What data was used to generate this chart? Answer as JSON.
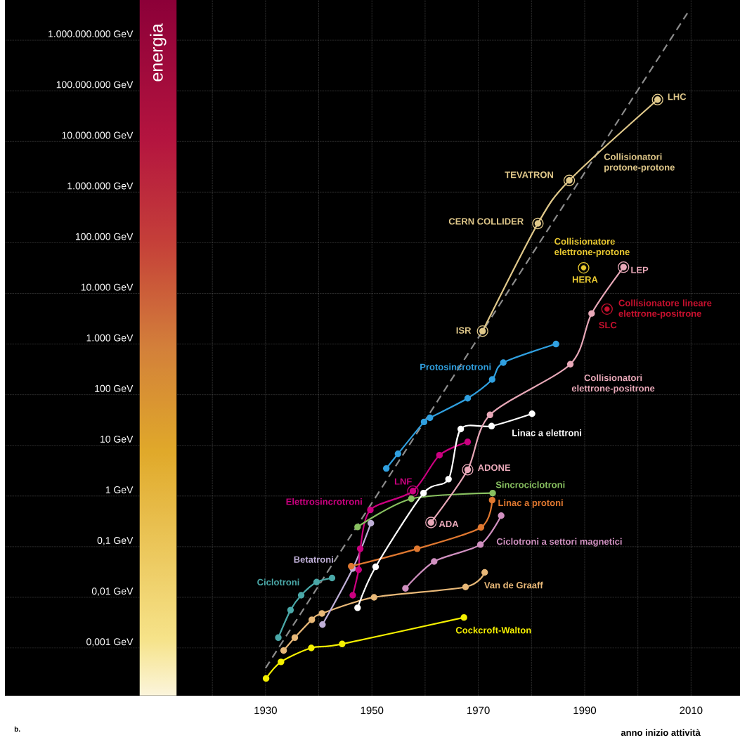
{
  "chart_data": {
    "type": "line",
    "xlabel": "anno inizio attività",
    "bands": [
      {
        "axis": "x",
        "from": 1906.3,
        "to": 1913.3,
        "label": "energia"
      }
    ],
    "xlim": [
      1881.0,
      2019.2
    ],
    "ylim": [
      0.000114,
      6200000000
    ],
    "log": true,
    "grid": true,
    "marker": "circle",
    "line_style": "solid",
    "xticks": [
      {
        "value": 1920,
        "label": null
      },
      1930,
      {
        "value": 1940,
        "label": null
      },
      1950,
      {
        "value": 1960,
        "label": null
      },
      1970,
      {
        "value": 1980,
        "label": null
      },
      1990,
      {
        "value": 2000,
        "label": null
      },
      2010
    ],
    "yticks": [
      {
        "value": 0.001,
        "label": "0,001 GeV"
      },
      {
        "value": 0.01,
        "label": "0,01 GeV"
      },
      {
        "value": 0.1,
        "label": "0,1 GeV"
      },
      {
        "value": 1,
        "label": "1 GeV"
      },
      {
        "value": 10,
        "label": "10 GeV"
      },
      {
        "value": 100,
        "label": "100 GeV"
      },
      {
        "value": 1000,
        "label": "1.000 GeV"
      },
      {
        "value": 10000,
        "label": "10.000 GeV"
      },
      {
        "value": 100000,
        "label": "100.000 GeV"
      },
      {
        "value": 1000000,
        "label": "1.000.000 GeV"
      },
      {
        "value": 10000000,
        "label": "10.000.000 GeV"
      },
      {
        "value": 100000000,
        "label": "100.000.000 GeV"
      },
      {
        "value": 1000000000,
        "label": "1.000.000.000 GeV"
      }
    ],
    "series": [
      {
        "type": "line",
        "color": "#8c8c8c",
        "line_style": "dashed",
        "marker": "none",
        "x": [
          1930,
          2009.3
        ],
        "values": [
          0.0004,
          3400000000
        ]
      },
      {
        "name": "Cockcroft-Walton",
        "color": "#f5f000",
        "x": [
          1930.1,
          1932.9,
          1938.6,
          1944.4,
          1967.3
        ],
        "values": [
          0.00025,
          0.00053,
          0.001,
          0.0012,
          0.004
        ]
      },
      {
        "name": "Van de Graaff",
        "color": "#e8b878",
        "x": [
          1933.4,
          1935.5,
          1938.7,
          1940.6,
          1950.4,
          1967.6,
          1971.2
        ],
        "values": [
          0.00089,
          0.0016,
          0.0036,
          0.0048,
          0.01,
          0.016,
          0.031
        ]
      },
      {
        "name": "Ciclotroni",
        "color": "#4aa8a8",
        "x": [
          1932.4,
          1934.7,
          1936.7,
          1939.6,
          1942.5
        ],
        "values": [
          0.0016,
          0.0056,
          0.011,
          0.02,
          0.024
        ]
      },
      {
        "name": "Betatroni",
        "color": "#c0b0d8",
        "x": [
          1940.7,
          1946.4,
          1949.8
        ],
        "values": [
          0.0029,
          0.037,
          0.29
        ]
      },
      {
        "name": "Elettrosincrotroni",
        "color": "#cc0080",
        "x": [
          1946.4,
          1947.5,
          1947.8,
          1949.7,
          1957.7,
          1962.7,
          1968.0
        ],
        "values": [
          0.011,
          0.035,
          0.091,
          0.53,
          1.25,
          6.4,
          11.7
        ]
      },
      {
        "name": "Sincrociclotroni",
        "color": "#88c060",
        "x": [
          1947.3,
          1957.4,
          1972.7
        ],
        "values": [
          0.245,
          0.88,
          1.14
        ]
      },
      {
        "name": "Linac a protoni",
        "color": "#e07830",
        "x": [
          1946.1,
          1958.5,
          1970.5,
          1972.6
        ],
        "values": [
          0.041,
          0.091,
          0.24,
          0.83
        ]
      },
      {
        "name": "Linac a elettroni",
        "color": "#ffffff",
        "x": [
          1947.3,
          1950.7,
          1959.7,
          1964.4,
          1966.7,
          1972.5,
          1980.1
        ],
        "values": [
          0.0062,
          0.04,
          1.14,
          2.15,
          21,
          24,
          42
        ]
      },
      {
        "name": "Protosincrotroni",
        "color": "#30a0e0",
        "x": [
          1952.7,
          1954.9,
          1959.8,
          1960.9,
          1968.0,
          1972.6,
          1974.7,
          1984.6
        ],
        "values": [
          3.5,
          6.8,
          29,
          35,
          85,
          200,
          430,
          1000
        ]
      },
      {
        "name": "Ciclotroni a settori magnetici",
        "color": "#d090c0",
        "x": [
          1956.3,
          1961.7,
          1970.4,
          1974.3
        ],
        "values": [
          0.015,
          0.051,
          0.11,
          0.41
        ]
      },
      {
        "name": "Collisionatori elettrone-positrone",
        "color": "#e8a8b8",
        "x": [
          1961.1,
          1968.0,
          1972.2,
          1987.3,
          1991.3,
          1997.3
        ],
        "values": [
          0.3,
          3.3,
          40,
          400,
          4000,
          33000
        ]
      },
      {
        "name": "Collisionatori protone-protone",
        "color": "#e0c88a",
        "x": [
          1970.8,
          1981.2,
          1987.1,
          2003.7
        ],
        "values": [
          1800,
          240000,
          1700000,
          67000000
        ]
      },
      {
        "name": "Collisionatore elettrone-protone",
        "type": "scatter",
        "color": "#e8c830",
        "x": [
          1989.8
        ],
        "values": [
          32000
        ]
      },
      {
        "name": "Collisionatore lineare elettrone-positrone",
        "type": "scatter",
        "color": "#c8102e",
        "x": [
          1994.2
        ],
        "values": [
          4900
        ]
      }
    ],
    "annotations": [
      {
        "text": "LNF",
        "x": 1957.7,
        "y": 1.25
      },
      {
        "text": "ADA",
        "x": 1961.1,
        "y": 0.3
      },
      {
        "text": "ADONE",
        "x": 1968.0,
        "y": 3.3
      },
      {
        "text": "ISR",
        "x": 1970.8,
        "y": 1800
      },
      {
        "text": "CERN COLLIDER",
        "x": 1981.2,
        "y": 240000
      },
      {
        "text": "TEVATRON",
        "x": 1987.1,
        "y": 1700000
      },
      {
        "text": "LHC",
        "x": 2003.7,
        "y": 67000000
      },
      {
        "text": "LEP",
        "x": 1997.3,
        "y": 33000
      },
      {
        "text": "HERA",
        "x": 1989.8,
        "y": 32000
      },
      {
        "text": "SLC",
        "x": 1994.2,
        "y": 4900
      },
      "b."
    ]
  }
}
